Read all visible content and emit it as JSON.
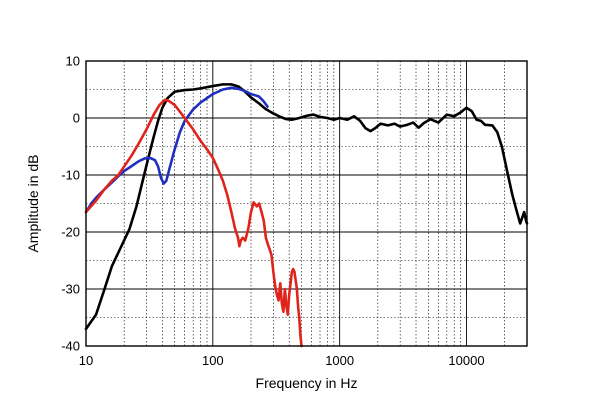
{
  "chart_data": {
    "type": "line",
    "title": "",
    "xlabel": "Frequency in Hz",
    "ylabel": "Amplitude in dB",
    "x_scale": "log",
    "xlim": [
      10,
      30000
    ],
    "ylim": [
      -40,
      10
    ],
    "x_ticks": [
      10,
      100,
      1000,
      10000
    ],
    "x_tick_labels": [
      "10",
      "100",
      "1000",
      "10000"
    ],
    "y_ticks": [
      10,
      0,
      -10,
      -20,
      -30,
      -40
    ],
    "y_tick_labels": [
      "10",
      "0",
      "-10",
      "-20",
      "-30",
      "-40"
    ],
    "grid": true,
    "legend": "none",
    "series": [
      {
        "color": "#000000",
        "points": [
          [
            10,
            -37
          ],
          [
            12,
            -34.5
          ],
          [
            14,
            -30
          ],
          [
            16,
            -26
          ],
          [
            19,
            -22.5
          ],
          [
            22,
            -19.5
          ],
          [
            25,
            -15.5
          ],
          [
            28,
            -11
          ],
          [
            31,
            -7
          ],
          [
            34,
            -3.5
          ],
          [
            37,
            -0.5
          ],
          [
            40,
            1.8
          ],
          [
            44,
            3.5
          ],
          [
            50,
            4.6
          ],
          [
            60,
            4.9
          ],
          [
            70,
            5.0
          ],
          [
            80,
            5.2
          ],
          [
            100,
            5.6
          ],
          [
            120,
            5.9
          ],
          [
            140,
            5.9
          ],
          [
            160,
            5.5
          ],
          [
            180,
            4.6
          ],
          [
            200,
            3.6
          ],
          [
            230,
            2.6
          ],
          [
            260,
            1.6
          ],
          [
            300,
            0.8
          ],
          [
            340,
            0.2
          ],
          [
            380,
            -0.2
          ],
          [
            420,
            -0.3
          ],
          [
            480,
            0.0
          ],
          [
            550,
            0.4
          ],
          [
            620,
            0.6
          ],
          [
            700,
            0.2
          ],
          [
            800,
            0.0
          ],
          [
            900,
            -0.3
          ],
          [
            1000,
            0.0
          ],
          [
            1150,
            -0.3
          ],
          [
            1300,
            0.3
          ],
          [
            1450,
            -0.5
          ],
          [
            1600,
            -1.8
          ],
          [
            1750,
            -2.3
          ],
          [
            1900,
            -1.8
          ],
          [
            2100,
            -1.0
          ],
          [
            2400,
            -1.3
          ],
          [
            2700,
            -1.0
          ],
          [
            3000,
            -1.5
          ],
          [
            3400,
            -1.2
          ],
          [
            3800,
            -0.8
          ],
          [
            4200,
            -1.7
          ],
          [
            4600,
            -0.9
          ],
          [
            5200,
            -0.2
          ],
          [
            6000,
            -0.8
          ],
          [
            7000,
            0.6
          ],
          [
            8000,
            0.3
          ],
          [
            9000,
            1.0
          ],
          [
            10000,
            1.8
          ],
          [
            11000,
            1.2
          ],
          [
            12000,
            -0.3
          ],
          [
            13000,
            -0.5
          ],
          [
            14000,
            -1.2
          ],
          [
            16000,
            -1.3
          ],
          [
            17500,
            -2.5
          ],
          [
            19000,
            -5
          ],
          [
            21000,
            -9.5
          ],
          [
            23000,
            -13.5
          ],
          [
            25000,
            -16.5
          ],
          [
            26500,
            -18.5
          ],
          [
            27500,
            -17.5
          ],
          [
            28500,
            -16.5
          ],
          [
            29500,
            -18
          ],
          [
            30000,
            -18.5
          ]
        ]
      },
      {
        "color": "#1f2fbf",
        "points": [
          [
            10,
            -16.5
          ],
          [
            11,
            -15
          ],
          [
            12,
            -14
          ],
          [
            14,
            -12.5
          ],
          [
            16,
            -11.3
          ],
          [
            18,
            -10.2
          ],
          [
            20,
            -9.3
          ],
          [
            23,
            -8.4
          ],
          [
            26,
            -7.6
          ],
          [
            29,
            -7.1
          ],
          [
            32,
            -7.0
          ],
          [
            35,
            -7.4
          ],
          [
            37,
            -8.5
          ],
          [
            39,
            -10.5
          ],
          [
            41,
            -11.5
          ],
          [
            43,
            -11.0
          ],
          [
            46,
            -8.5
          ],
          [
            50,
            -5.5
          ],
          [
            55,
            -2.5
          ],
          [
            60,
            -0.5
          ],
          [
            70,
            1.5
          ],
          [
            80,
            2.7
          ],
          [
            100,
            4.2
          ],
          [
            120,
            5.0
          ],
          [
            140,
            5.3
          ],
          [
            160,
            5.1
          ],
          [
            180,
            4.7
          ],
          [
            200,
            4.2
          ],
          [
            230,
            3.8
          ],
          [
            250,
            3.0
          ],
          [
            270,
            2.0
          ]
        ]
      },
      {
        "color": "#e0241b",
        "points": [
          [
            10,
            -16.5
          ],
          [
            12,
            -14.5
          ],
          [
            14,
            -12.5
          ],
          [
            16,
            -11
          ],
          [
            18,
            -10
          ],
          [
            20,
            -8.5
          ],
          [
            23,
            -6.5
          ],
          [
            26,
            -4.5
          ],
          [
            30,
            -2.0
          ],
          [
            34,
            0.5
          ],
          [
            38,
            2.3
          ],
          [
            42,
            3.2
          ],
          [
            45,
            3.0
          ],
          [
            50,
            2.3
          ],
          [
            60,
            0.0
          ],
          [
            70,
            -2.0
          ],
          [
            80,
            -4.0
          ],
          [
            90,
            -5.5
          ],
          [
            100,
            -7.0
          ],
          [
            110,
            -9.0
          ],
          [
            120,
            -11.0
          ],
          [
            130,
            -13.5
          ],
          [
            140,
            -16.5
          ],
          [
            150,
            -19.5
          ],
          [
            158,
            -21
          ],
          [
            162,
            -22.5
          ],
          [
            166,
            -21.5
          ],
          [
            172,
            -21
          ],
          [
            180,
            -21.5
          ],
          [
            190,
            -19.5
          ],
          [
            200,
            -16.5
          ],
          [
            210,
            -14.8
          ],
          [
            222,
            -15.5
          ],
          [
            232,
            -15
          ],
          [
            242,
            -16.5
          ],
          [
            252,
            -18
          ],
          [
            262,
            -21
          ],
          [
            270,
            -22
          ],
          [
            280,
            -23
          ],
          [
            290,
            -24
          ],
          [
            300,
            -27
          ],
          [
            310,
            -29.5
          ],
          [
            320,
            -31
          ],
          [
            330,
            -32
          ],
          [
            340,
            -29
          ],
          [
            350,
            -32.5
          ],
          [
            360,
            -34
          ],
          [
            370,
            -30
          ],
          [
            380,
            -33
          ],
          [
            390,
            -34.5
          ],
          [
            400,
            -31
          ],
          [
            410,
            -29
          ],
          [
            420,
            -27
          ],
          [
            430,
            -26.5
          ],
          [
            440,
            -27
          ],
          [
            450,
            -28.5
          ],
          [
            460,
            -30
          ],
          [
            470,
            -33
          ],
          [
            480,
            -35
          ],
          [
            490,
            -38
          ],
          [
            500,
            -40
          ]
        ]
      }
    ]
  }
}
